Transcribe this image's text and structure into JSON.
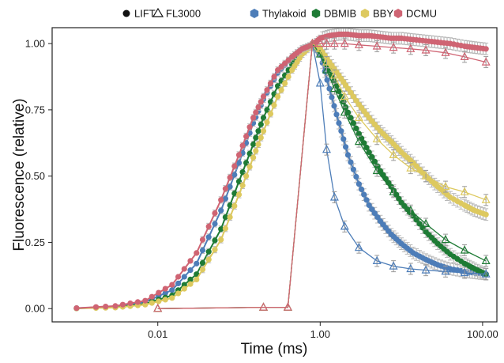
{
  "chart_data": {
    "type": "line",
    "xlabel": "Time (ms)",
    "ylabel": "Fluorescence (relative)",
    "x_scale": "log",
    "xlim": [
      0.0005,
      150
    ],
    "ylim": [
      -0.05,
      1.06
    ],
    "x_ticks": [
      0.01,
      1,
      100
    ],
    "x_tick_labels": [
      "0.01",
      "1.00",
      "100.00"
    ],
    "y_ticks": [
      0,
      0.25,
      0.5,
      0.75,
      1
    ],
    "y_tick_labels": [
      "0.00",
      "0.25",
      "0.50",
      "0.75",
      "1.00"
    ],
    "grid": false,
    "legend_placement": "top",
    "legend": {
      "methods": [
        {
          "label": "LIFT",
          "marker": "circle"
        },
        {
          "label": "FL3000",
          "marker": "triangle"
        }
      ],
      "samples": [
        {
          "label": "Thylakoid",
          "color": "#4d7db8"
        },
        {
          "label": "DBMIB",
          "color": "#1e7b35"
        },
        {
          "label": "BBY",
          "color": "#ddc95f"
        },
        {
          "label": "DCMU",
          "color": "#cf6473"
        }
      ]
    },
    "series": [
      {
        "name": "Thylakoid",
        "method": "LIFT",
        "color": "#4d7db8",
        "x": [
          0.001,
          0.003,
          0.007,
          0.015,
          0.03,
          0.06,
          0.1,
          0.15,
          0.2,
          0.3,
          0.45,
          0.6,
          0.8,
          1.0,
          1.3,
          1.7,
          2.2,
          3,
          4,
          5.5,
          7.5,
          10,
          14,
          20,
          28,
          40,
          60,
          80,
          110
        ],
        "y": [
          0.002,
          0.008,
          0.025,
          0.07,
          0.17,
          0.37,
          0.55,
          0.7,
          0.79,
          0.89,
          0.95,
          0.98,
          0.995,
          0.96,
          0.83,
          0.7,
          0.58,
          0.47,
          0.39,
          0.33,
          0.28,
          0.245,
          0.21,
          0.185,
          0.165,
          0.15,
          0.14,
          0.135,
          0.13
        ]
      },
      {
        "name": "DBMIB",
        "method": "LIFT",
        "color": "#1e7b35",
        "x": [
          0.001,
          0.003,
          0.007,
          0.015,
          0.03,
          0.06,
          0.1,
          0.15,
          0.2,
          0.3,
          0.45,
          0.6,
          0.8,
          1.0,
          1.3,
          1.7,
          2.2,
          3,
          4,
          5.5,
          7.5,
          10,
          14,
          20,
          28,
          40,
          60,
          80,
          110
        ],
        "y": [
          0.001,
          0.005,
          0.018,
          0.05,
          0.13,
          0.3,
          0.48,
          0.62,
          0.72,
          0.84,
          0.92,
          0.97,
          0.995,
          0.97,
          0.9,
          0.82,
          0.74,
          0.66,
          0.59,
          0.52,
          0.46,
          0.4,
          0.35,
          0.29,
          0.245,
          0.205,
          0.17,
          0.15,
          0.13
        ]
      },
      {
        "name": "BBY",
        "method": "LIFT",
        "color": "#ddc95f",
        "x": [
          0.001,
          0.003,
          0.007,
          0.015,
          0.03,
          0.06,
          0.1,
          0.15,
          0.2,
          0.3,
          0.45,
          0.6,
          0.8,
          1.0,
          1.3,
          1.7,
          2.2,
          3,
          4,
          5.5,
          7.5,
          10,
          14,
          20,
          28,
          40,
          60,
          80,
          110
        ],
        "y": [
          0.001,
          0.004,
          0.015,
          0.04,
          0.11,
          0.26,
          0.43,
          0.57,
          0.67,
          0.8,
          0.9,
          0.96,
          0.995,
          0.98,
          0.93,
          0.88,
          0.83,
          0.77,
          0.72,
          0.67,
          0.63,
          0.59,
          0.55,
          0.5,
          0.46,
          0.42,
          0.39,
          0.37,
          0.355
        ]
      },
      {
        "name": "DCMU",
        "method": "LIFT",
        "color": "#cf6473",
        "x": [
          0.001,
          0.003,
          0.007,
          0.015,
          0.03,
          0.06,
          0.1,
          0.15,
          0.2,
          0.3,
          0.45,
          0.6,
          0.8,
          1.0,
          1.3,
          1.7,
          2.2,
          3,
          4,
          5.5,
          7.5,
          10,
          14,
          20,
          28,
          40,
          60,
          80,
          110
        ],
        "y": [
          0.002,
          0.01,
          0.03,
          0.09,
          0.21,
          0.41,
          0.58,
          0.72,
          0.8,
          0.9,
          0.95,
          0.98,
          0.995,
          1.02,
          1.03,
          1.035,
          1.035,
          1.03,
          1.03,
          1.025,
          1.02,
          1.02,
          1.015,
          1.01,
          1.005,
          1.0,
          0.99,
          0.985,
          0.98
        ]
      },
      {
        "name": "Thylakoid",
        "method": "FL3000",
        "color": "#4d7db8",
        "x": [
          0.01,
          0.2,
          0.4,
          0.8,
          1.0,
          1.2,
          1.5,
          2,
          3,
          5,
          8,
          13,
          20,
          35,
          60,
          110
        ],
        "y": [
          0.0,
          0.005,
          0.005,
          1.0,
          0.85,
          0.6,
          0.42,
          0.31,
          0.23,
          0.18,
          0.16,
          0.15,
          0.145,
          0.14,
          0.135,
          0.13
        ]
      },
      {
        "name": "DBMIB",
        "method": "FL3000",
        "color": "#1e7b35",
        "x": [
          0.01,
          0.2,
          0.4,
          0.8,
          1.0,
          1.2,
          1.5,
          2,
          3,
          5,
          8,
          13,
          20,
          35,
          60,
          110
        ],
        "y": [
          0.0,
          0.005,
          0.005,
          1.0,
          0.96,
          0.9,
          0.83,
          0.74,
          0.63,
          0.52,
          0.44,
          0.37,
          0.32,
          0.26,
          0.22,
          0.18
        ]
      },
      {
        "name": "BBY",
        "method": "FL3000",
        "color": "#ddc95f",
        "x": [
          0.01,
          0.2,
          0.4,
          0.8,
          1.0,
          1.2,
          1.5,
          2,
          3,
          5,
          8,
          13,
          20,
          35,
          60,
          110
        ],
        "y": [
          0.0,
          0.005,
          0.005,
          1.0,
          0.98,
          0.93,
          0.88,
          0.8,
          0.72,
          0.64,
          0.58,
          0.53,
          0.5,
          0.46,
          0.44,
          0.41
        ]
      },
      {
        "name": "DCMU",
        "method": "FL3000",
        "color": "#cf6473",
        "x": [
          0.01,
          0.2,
          0.4,
          0.8,
          1.0,
          1.2,
          1.5,
          2,
          3,
          5,
          8,
          13,
          20,
          35,
          60,
          110
        ],
        "y": [
          0.0,
          0.005,
          0.005,
          1.0,
          1.0,
          1.0,
          1.0,
          1.0,
          0.995,
          0.99,
          0.985,
          0.98,
          0.975,
          0.965,
          0.95,
          0.93
        ]
      }
    ]
  }
}
